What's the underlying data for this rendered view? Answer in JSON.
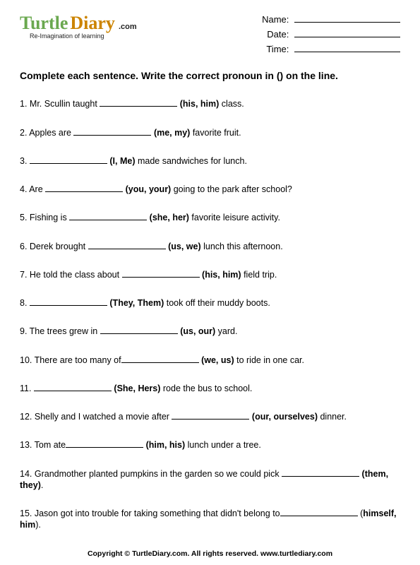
{
  "logo": {
    "w1": "Turtle",
    "w2": "Diary",
    "dotcom": ".com",
    "sub": "Re-Imagination of learning"
  },
  "fields": {
    "name": "Name:",
    "date": "Date:",
    "time": "Time:"
  },
  "instructions": "Complete each sentence. Write the correct pronoun in () on the line.",
  "q": [
    {
      "n": "1.",
      "pre": "Mr. Scullin taught ",
      "ch": "(his, him)",
      "post": " class."
    },
    {
      "n": "2.",
      "pre": "Apples are ",
      "ch": "(me, my)",
      "post": " favorite fruit."
    },
    {
      "n": "3.",
      "pre": "",
      "ch": "(I, Me)",
      "post": " made sandwiches for lunch.",
      "lead": true
    },
    {
      "n": "4.",
      "pre": " Are ",
      "ch": "(you, your)",
      "post": " going to the park after school?"
    },
    {
      "n": "5.",
      "pre": "Fishing is ",
      "ch": "(she, her)",
      "post": " favorite leisure activity."
    },
    {
      "n": "6.",
      "pre": "Derek brought ",
      "ch": "(us, we)",
      "post": " lunch this afternoon."
    },
    {
      "n": "7.",
      "pre": "He told the class about ",
      "ch": "(his, him)",
      "post": " field trip."
    },
    {
      "n": "8.",
      "pre": "",
      "ch": "(They, Them)",
      "post": " took off their muddy boots.",
      "lead": true
    },
    {
      "n": "9.",
      "pre": "The trees grew in ",
      "ch": "(us, our)",
      "post": " yard."
    },
    {
      "n": "10.",
      "pre": "There are too many of",
      "ch": "(we, us)",
      "post": " to ride in one car."
    },
    {
      "n": "11.",
      "pre": "",
      "ch": "(She, Hers)",
      "post": " rode the bus to school.",
      "lead": true
    },
    {
      "n": "12.",
      "pre": "Shelly and I watched a movie after ",
      "ch": "(our, ourselves)",
      "post": " dinner."
    },
    {
      "n": "13.",
      "pre": "Tom ate",
      "ch": "(him, his)",
      "post": " lunch under a tree."
    },
    {
      "n": "14.",
      "pre": "Grandmother planted pumpkins in the garden so we could pick ",
      "ch": "(them, they)",
      "post": "."
    },
    {
      "n": "15.",
      "pre": "Jason got into trouble for taking something that didn't belong to",
      "ch": "himself, him",
      "post": ").",
      "paren": "("
    }
  ],
  "footer": "Copyright © TurtleDiary.com. All rights reserved. www.turtlediary.com"
}
